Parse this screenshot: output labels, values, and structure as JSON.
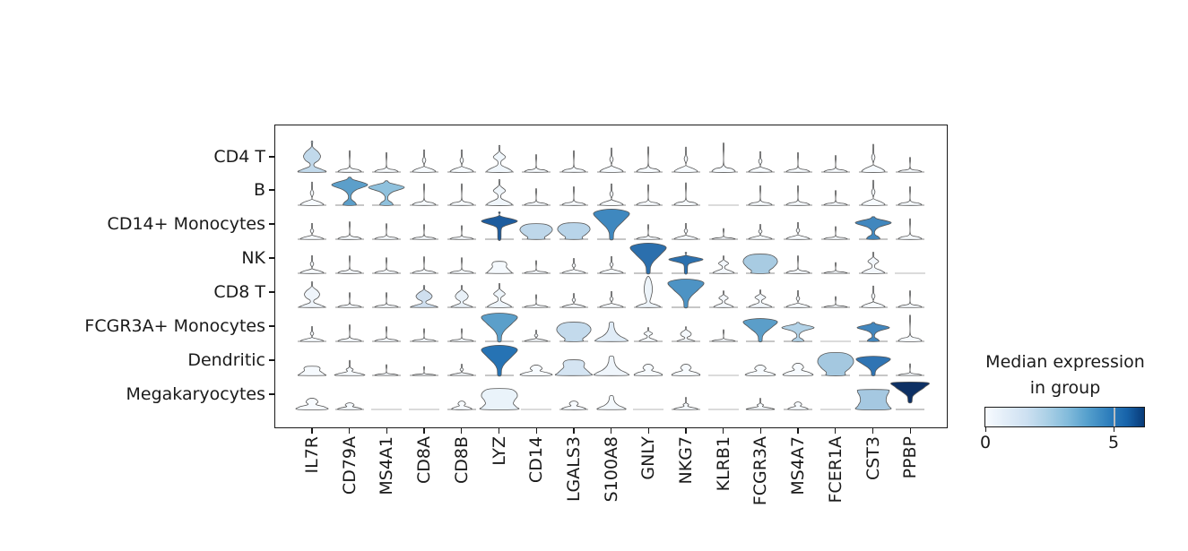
{
  "figure": {
    "background": "#ffffff"
  },
  "chart_data": {
    "type": "stacked_violin",
    "title": "",
    "rows": [
      "CD4 T",
      "B",
      "CD14+ Monocytes",
      "NK",
      "CD8 T",
      "FCGR3A+ Monocytes",
      "Dendritic",
      "Megakaryocytes"
    ],
    "genes": [
      "IL7R",
      "CD79A",
      "MS4A1",
      "CD8A",
      "CD8B",
      "LYZ",
      "CD14",
      "LGALS3",
      "S100A8",
      "GNLY",
      "NKG7",
      "KLRB1",
      "FCGR3A",
      "MS4A7",
      "FCER1A",
      "CST3",
      "PPBP"
    ],
    "colorbar": {
      "title_line1": "Median expression",
      "title_line2": "in group",
      "tick_labels": [
        "0",
        "5"
      ],
      "tick_values": [
        0,
        5
      ],
      "vmin": 0,
      "vmax": 6.2,
      "colormap": "Blues",
      "legend_position": "right-bottom"
    },
    "grid": false,
    "median_expression": [
      [
        1.6,
        0,
        0,
        0,
        0,
        0.3,
        0,
        0,
        0,
        0,
        0,
        0,
        0,
        0,
        0,
        0,
        0
      ],
      [
        0,
        3.4,
        2.7,
        0,
        0,
        0.3,
        0,
        0,
        0,
        0,
        0,
        0,
        0,
        0,
        0,
        0,
        0
      ],
      [
        0,
        0,
        0,
        0,
        0,
        5.6,
        1.6,
        1.7,
        4.1,
        0,
        0,
        0,
        0,
        0,
        0,
        4.0,
        0
      ],
      [
        0,
        0,
        0,
        0,
        0,
        0.2,
        0,
        0,
        0,
        4.9,
        4.9,
        0.3,
        2.1,
        0,
        0,
        0.2,
        0
      ],
      [
        0.4,
        0,
        0,
        1.2,
        0.6,
        0.3,
        0,
        0,
        0,
        0.3,
        3.7,
        0.2,
        0.2,
        0,
        0,
        0.2,
        0
      ],
      [
        0,
        0,
        0,
        0,
        0,
        3.4,
        0.1,
        1.3,
        0.7,
        0.1,
        0.2,
        0,
        3.5,
        1.8,
        0,
        4.0,
        0
      ],
      [
        0.2,
        0.1,
        0,
        0,
        0,
        4.9,
        0.1,
        1.0,
        0.4,
        0.1,
        0.1,
        0,
        0.1,
        0.2,
        2.3,
        4.9,
        0
      ],
      [
        0.1,
        0,
        0,
        0,
        0,
        0.5,
        0,
        0.1,
        0.2,
        0,
        0.1,
        0,
        0.1,
        0,
        0,
        2.2,
        6.2
      ]
    ],
    "cells": [
      [
        [
          "onion",
          34,
          0.95,
          "#c1d9eb"
        ],
        [
          "spike",
          22,
          0.8,
          "#f7fbff"
        ],
        [
          "spike",
          20,
          0.8,
          "#f7fbff"
        ],
        [
          "lspike",
          24,
          0.8,
          "#f7fbff"
        ],
        [
          "lspike",
          24,
          0.8,
          "#f7fbff"
        ],
        [
          "wdia",
          29,
          0.85,
          "#f1f7fc"
        ],
        [
          "spike",
          18,
          0.8,
          "#f7fbff"
        ],
        [
          "spike",
          22,
          0.8,
          "#f7fbff"
        ],
        [
          "lspike",
          26,
          0.8,
          "#f7fbff"
        ],
        [
          "spike",
          26,
          0.8,
          "#f7fbff"
        ],
        [
          "lspike",
          27,
          0.8,
          "#f7fbff"
        ],
        [
          "spike",
          30,
          0.8,
          "#f7fbff"
        ],
        [
          "lspike",
          22,
          0.8,
          "#f7fbff"
        ],
        [
          "spike",
          20,
          0.8,
          "#f7fbff"
        ],
        [
          "spike",
          17,
          0.8,
          "#f7fbff"
        ],
        [
          "lspike",
          30,
          0.8,
          "#f7fbff"
        ],
        [
          "spike",
          15,
          0.8,
          "#f7fbff"
        ]
      ],
      [
        [
          "lspike",
          25,
          0.8,
          "#f7fbff"
        ],
        [
          "dia",
          31,
          1,
          "#5c9fca"
        ],
        [
          "dia",
          27,
          1,
          "#8fc1dd"
        ],
        [
          "spike",
          22,
          0.8,
          "#f7fbff"
        ],
        [
          "spike",
          22,
          0.8,
          "#f7fbff"
        ],
        [
          "wdia",
          28,
          0.85,
          "#f0f6fb"
        ],
        [
          "spike",
          17,
          0.8,
          "#f7fbff"
        ],
        [
          "spike",
          19,
          0.8,
          "#f7fbff"
        ],
        [
          "lspike",
          23,
          0.8,
          "#f7fbff"
        ],
        [
          "spike",
          21,
          0.8,
          "#f7fbff"
        ],
        [
          "spike",
          23,
          0.8,
          "#f7fbff"
        ],
        [
          "flat",
          0,
          1,
          "#d8d8d8"
        ],
        [
          "spike",
          20,
          0.8,
          "#f7fbff"
        ],
        [
          "spike",
          20,
          0.8,
          "#f7fbff"
        ],
        [
          "spike",
          15,
          0.8,
          "#f7fbff"
        ],
        [
          "lspike",
          27,
          0.8,
          "#f7fbff"
        ],
        [
          "spike",
          19,
          0.8,
          "#f7fbff"
        ]
      ],
      [
        [
          "lspike",
          17,
          0.8,
          "#f7fbff"
        ],
        [
          "spike",
          18,
          0.8,
          "#f7fbff"
        ],
        [
          "spike",
          16,
          0.8,
          "#f7fbff"
        ],
        [
          "spike",
          15,
          0.8,
          "#f7fbff"
        ],
        [
          "spike",
          14,
          0.8,
          "#f7fbff"
        ],
        [
          "arrow",
          30,
          1,
          "#1d5c9e"
        ],
        [
          "blob",
          17,
          0.9,
          "#bed7ea"
        ],
        [
          "blob",
          18,
          0.9,
          "#b8d4e9"
        ],
        [
          "fan",
          33,
          1,
          "#3f88bf"
        ],
        [
          "spike",
          15,
          0.8,
          "#f7fbff"
        ],
        [
          "lspike",
          17,
          0.8,
          "#f7fbff"
        ],
        [
          "spike",
          11,
          0.8,
          "#f7fbff"
        ],
        [
          "lspike",
          16,
          0.8,
          "#f7fbff"
        ],
        [
          "lspike",
          18,
          0.8,
          "#f7fbff"
        ],
        [
          "spike",
          13,
          0.8,
          "#f7fbff"
        ],
        [
          "dia",
          25,
          1,
          "#4187be"
        ],
        [
          "spike",
          21,
          0.8,
          "#f7fbff"
        ]
      ],
      [
        [
          "lspike",
          19,
          0.8,
          "#f7fbff"
        ],
        [
          "spike",
          18,
          0.8,
          "#f7fbff"
        ],
        [
          "spike",
          16,
          0.8,
          "#f7fbff"
        ],
        [
          "spike",
          17,
          0.8,
          "#f7fbff"
        ],
        [
          "spike",
          16,
          0.8,
          "#f7fbff"
        ],
        [
          "dome",
          13,
          0.62,
          "#f5f9fd"
        ],
        [
          "spike",
          13,
          0.8,
          "#f7fbff"
        ],
        [
          "lspike",
          16,
          0.8,
          "#f7fbff"
        ],
        [
          "lspike",
          18,
          0.8,
          "#f7fbff"
        ],
        [
          "fan",
          33,
          1,
          "#2b6fad"
        ],
        [
          "arrow",
          23,
          0.95,
          "#2b70ae"
        ],
        [
          "wdia",
          19,
          0.7,
          "#f4f8fd"
        ],
        [
          "blob",
          21,
          0.95,
          "#a8cbe2"
        ],
        [
          "spike",
          18,
          0.8,
          "#f7fbff"
        ],
        [
          "spike",
          11,
          0.8,
          "#f7fbff"
        ],
        [
          "wdia",
          23,
          0.75,
          "#f4f8fd"
        ],
        [
          "flat",
          0,
          1,
          "#d8d8d8"
        ]
      ],
      [
        [
          "onion",
          28,
          0.85,
          "#eff5fb"
        ],
        [
          "spike",
          15,
          0.8,
          "#f7fbff"
        ],
        [
          "spike",
          15,
          0.8,
          "#f7fbff"
        ],
        [
          "onion",
          24,
          0.9,
          "#cfdfef"
        ],
        [
          "onion",
          24,
          0.72,
          "#e9f1f8"
        ],
        [
          "wdia",
          26,
          0.8,
          "#eef5fb"
        ],
        [
          "spike",
          13,
          0.8,
          "#f7fbff"
        ],
        [
          "lspike",
          15,
          0.8,
          "#f7fbff"
        ],
        [
          "lspike",
          17,
          0.8,
          "#f7fbff"
        ],
        [
          "tallv",
          34,
          1,
          "#edf4fa"
        ],
        [
          "fan",
          31,
          1,
          "#4d93c4"
        ],
        [
          "wdia",
          18,
          0.65,
          "#f4f8fd"
        ],
        [
          "wdia",
          19,
          0.75,
          "#f2f7fc"
        ],
        [
          "lspike",
          18,
          0.8,
          "#f7fbff"
        ],
        [
          "spike",
          11,
          0.8,
          "#f7fbff"
        ],
        [
          "lspike",
          23,
          0.8,
          "#f7fbff"
        ],
        [
          "spike",
          17,
          0.8,
          "#f7fbff"
        ]
      ],
      [
        [
          "lspike",
          16,
          0.8,
          "#f7fbff"
        ],
        [
          "spike",
          17,
          0.8,
          "#f7fbff"
        ],
        [
          "spike",
          15,
          0.8,
          "#f7fbff"
        ],
        [
          "spike",
          13,
          0.8,
          "#f7fbff"
        ],
        [
          "spike",
          13,
          0.8,
          "#f7fbff"
        ],
        [
          "fan",
          31,
          1,
          "#5b9fca"
        ],
        [
          "lspike",
          12,
          0.8,
          "#f7fbff"
        ],
        [
          "blob",
          21,
          0.95,
          "#c3daec"
        ],
        [
          "bell",
          21,
          0.8,
          "#e0ecf7"
        ],
        [
          "wdia",
          15,
          0.6,
          "#f6fafe"
        ],
        [
          "onion",
          16,
          0.6,
          "#f5f9fd"
        ],
        [
          "spike",
          12,
          0.8,
          "#f7fbff"
        ],
        [
          "fan",
          25,
          0.95,
          "#5b9ec9"
        ],
        [
          "dia",
          21,
          0.9,
          "#b2d2e7"
        ],
        [
          "flat",
          0,
          1,
          "#d8d8d8"
        ],
        [
          "dia",
          21,
          0.9,
          "#4286bd"
        ],
        [
          "spike",
          27,
          0.8,
          "#f7fbff"
        ]
      ],
      [
        [
          "dome",
          10,
          0.68,
          "#f6fafe"
        ],
        [
          "bspike",
          16,
          0.75,
          "#f6fafe"
        ],
        [
          "spike",
          11,
          0.8,
          "#f7fbff"
        ],
        [
          "spike",
          9,
          0.8,
          "#f7fbff"
        ],
        [
          "lspike",
          12,
          0.8,
          "#f7fbff"
        ],
        [
          "fan",
          33,
          1,
          "#2673b4"
        ],
        [
          "bump",
          11,
          0.8,
          "#f7fbff"
        ],
        [
          "dome",
          17,
          0.9,
          "#d4e4f2"
        ],
        [
          "bell",
          21,
          0.85,
          "#eff5fb"
        ],
        [
          "bump",
          12,
          0.7,
          "#f7fbff"
        ],
        [
          "bump",
          12,
          0.7,
          "#f7fbff"
        ],
        [
          "flat",
          0,
          1,
          "#d8d8d8"
        ],
        [
          "bump",
          11,
          0.75,
          "#f7fbff"
        ],
        [
          "bump",
          13,
          0.75,
          "#f7fbff"
        ],
        [
          "blob",
          25,
          1,
          "#a4c8e0"
        ],
        [
          "fan",
          21,
          0.95,
          "#2f74b3"
        ],
        [
          "spike",
          12,
          0.8,
          "#f7fbff"
        ]
      ],
      [
        [
          "bump",
          12,
          0.8,
          "#f7fbff"
        ],
        [
          "bump",
          7,
          0.6,
          "#f7fbff"
        ],
        [
          "flat",
          0,
          1,
          "#d8d8d8"
        ],
        [
          "flat",
          0,
          1,
          "#d8d8d8"
        ],
        [
          "bump",
          9,
          0.5,
          "#f7fbff"
        ],
        [
          "bigblob",
          23,
          1,
          "#eaf3fa"
        ],
        [
          "flat",
          0,
          1,
          "#d8d8d8"
        ],
        [
          "bump",
          9,
          0.6,
          "#f7fbff"
        ],
        [
          "bell",
          15,
          0.7,
          "#f4f9fd"
        ],
        [
          "flat",
          0,
          1,
          "#d8d8d8"
        ],
        [
          "bspike",
          13,
          0.6,
          "#f7fbff"
        ],
        [
          "flat",
          0,
          1,
          "#d8d8d8"
        ],
        [
          "bspike",
          12,
          0.7,
          "#f7fbff"
        ],
        [
          "bump",
          8,
          0.5,
          "#f7fbff"
        ],
        [
          "flat",
          0,
          1,
          "#d8d8d8"
        ],
        [
          "rect",
          22,
          0.9,
          "#a5c8e1"
        ],
        [
          "ifan",
          22,
          0.95,
          "#0d3064",
          8
        ]
      ]
    ]
  }
}
